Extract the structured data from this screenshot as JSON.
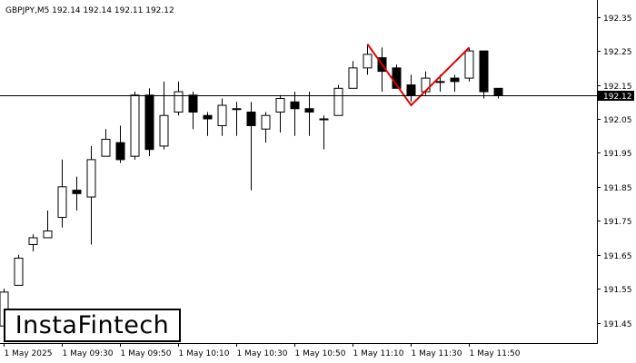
{
  "header": {
    "symbol_info": "GBPJPY,M5  192.14 192.14 192.11 192.12"
  },
  "logo": {
    "text": "InstaFintech"
  },
  "colors": {
    "background": "#ffffff",
    "axis": "#000000",
    "candle_outline": "#000000",
    "bull_fill": "#ffffff",
    "bear_fill": "#000000",
    "pattern_line": "#e00000",
    "current_price_line": "#000000"
  },
  "chart_data": {
    "type": "candlestick",
    "title": "GBPJPY,M5",
    "current_price": "192.12",
    "ylim": [
      191.39,
      192.4
    ],
    "y_ticks": [
      "192.35",
      "192.25",
      "192.15",
      "192.05",
      "191.95",
      "191.85",
      "191.75",
      "191.65",
      "191.55",
      "191.45"
    ],
    "x_tick_labels": [
      "1 May 2025",
      "1 May 09:30",
      "1 May 09:50",
      "1 May 10:10",
      "1 May 10:30",
      "1 May 10:50",
      "1 May 11:10",
      "1 May 11:30",
      "1 May 11:50"
    ],
    "grid": false,
    "candles": [
      {
        "o": 191.44,
        "h": 191.55,
        "l": 191.4,
        "c": 191.54
      },
      {
        "o": 191.56,
        "h": 191.65,
        "l": 191.56,
        "c": 191.64
      },
      {
        "o": 191.68,
        "h": 191.71,
        "l": 191.66,
        "c": 191.7
      },
      {
        "o": 191.7,
        "h": 191.78,
        "l": 191.7,
        "c": 191.72
      },
      {
        "o": 191.76,
        "h": 191.93,
        "l": 191.73,
        "c": 191.85
      },
      {
        "o": 191.84,
        "h": 191.88,
        "l": 191.78,
        "c": 191.83
      },
      {
        "o": 191.82,
        "h": 191.97,
        "l": 191.68,
        "c": 191.93
      },
      {
        "o": 191.94,
        "h": 192.02,
        "l": 191.94,
        "c": 191.99
      },
      {
        "o": 191.98,
        "h": 192.03,
        "l": 191.92,
        "c": 191.93
      },
      {
        "o": 191.94,
        "h": 192.13,
        "l": 191.93,
        "c": 192.12
      },
      {
        "o": 192.12,
        "h": 192.14,
        "l": 191.94,
        "c": 191.96
      },
      {
        "o": 191.97,
        "h": 192.16,
        "l": 191.96,
        "c": 192.06
      },
      {
        "o": 192.07,
        "h": 192.16,
        "l": 192.06,
        "c": 192.13
      },
      {
        "o": 192.12,
        "h": 192.13,
        "l": 192.02,
        "c": 192.07
      },
      {
        "o": 192.06,
        "h": 192.07,
        "l": 192.0,
        "c": 192.05
      },
      {
        "o": 192.03,
        "h": 192.11,
        "l": 192.0,
        "c": 192.09
      },
      {
        "o": 192.08,
        "h": 192.1,
        "l": 192.0,
        "c": 192.08
      },
      {
        "o": 192.07,
        "h": 192.1,
        "l": 191.84,
        "c": 192.03
      },
      {
        "o": 192.02,
        "h": 192.07,
        "l": 191.98,
        "c": 192.06
      },
      {
        "o": 192.07,
        "h": 192.12,
        "l": 192.01,
        "c": 192.11
      },
      {
        "o": 192.1,
        "h": 192.13,
        "l": 192.0,
        "c": 192.08
      },
      {
        "o": 192.08,
        "h": 192.13,
        "l": 192.0,
        "c": 192.07
      },
      {
        "o": 192.05,
        "h": 192.06,
        "l": 191.96,
        "c": 192.05
      },
      {
        "o": 192.06,
        "h": 192.15,
        "l": 192.06,
        "c": 192.14
      },
      {
        "o": 192.14,
        "h": 192.22,
        "l": 192.14,
        "c": 192.2
      },
      {
        "o": 192.2,
        "h": 192.27,
        "l": 192.18,
        "c": 192.24
      },
      {
        "o": 192.23,
        "h": 192.26,
        "l": 192.13,
        "c": 192.19
      },
      {
        "o": 192.2,
        "h": 192.21,
        "l": 192.14,
        "c": 192.14
      },
      {
        "o": 192.15,
        "h": 192.18,
        "l": 192.1,
        "c": 192.12
      },
      {
        "o": 192.13,
        "h": 192.19,
        "l": 192.12,
        "c": 192.17
      },
      {
        "o": 192.16,
        "h": 192.18,
        "l": 192.13,
        "c": 192.16
      },
      {
        "o": 192.17,
        "h": 192.18,
        "l": 192.13,
        "c": 192.16
      },
      {
        "o": 192.17,
        "h": 192.26,
        "l": 192.16,
        "c": 192.25
      },
      {
        "o": 192.25,
        "h": 192.25,
        "l": 192.11,
        "c": 192.13
      },
      {
        "o": 192.14,
        "h": 192.14,
        "l": 192.11,
        "c": 192.12
      }
    ],
    "x_tick_candle_index": [
      0,
      4,
      8,
      12,
      16,
      20,
      24,
      28,
      32
    ],
    "pattern_line": [
      {
        "i": 25,
        "price": 192.27
      },
      {
        "i": 28,
        "price": 192.09
      },
      {
        "i": 32,
        "price": 192.26
      }
    ]
  }
}
